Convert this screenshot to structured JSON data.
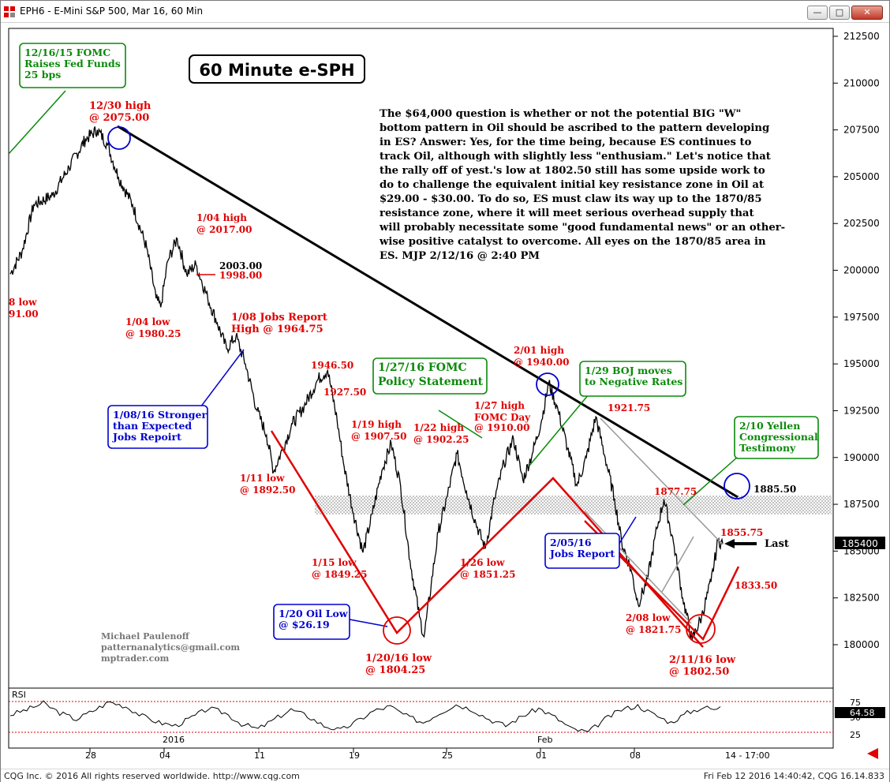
{
  "window": {
    "title": "EPH6 - E-Mini S&P 500, Mar 16, 60 Min",
    "buttons": {
      "minimize": "—",
      "maximize": "□",
      "close": "✕"
    }
  },
  "footer": {
    "left": "CQG Inc. © 2016 All rights reserved worldwide. http://www.cqg.com",
    "right": "Fri Feb 12 2016 14:40:42, CQG 16.14.833"
  },
  "chart_title": "60 Minute e-SPH",
  "commentary": [
    "The $64,000 question is whether or not the potential BIG \"W\"",
    "bottom pattern in Oil should be ascribed to the pattern developing",
    "in ES? Answer: Yes, for the time being, because ES continues to",
    "track Oil, although with slightly less \"enthusiam.\" Let's notice that",
    "the rally off of yest.'s low at 1802.50 still has some upside work to",
    "do to challenge the equivalent initial key resistance zone in Oil at",
    "$29.00 - $30.00. To do so, ES must claw its way up to the 1870/85",
    "resistance zone, where it will meet serious overhead supply that",
    "will probably necessitate some \"good fundamental news\" or an other-",
    "wise positive catalyst to overcome. All eyes on the 1870/85 area in",
    "ES. MJP 2/12/16 @ 2:40 PM"
  ],
  "author": [
    "Michael Paulenoff",
    "patternanalytics@gmail.com",
    "mptrader.com"
  ],
  "last_label": "Last",
  "last_price": "185400",
  "rsi_label": "RSI",
  "rsi_value": "64.58",
  "time_stamp": "14 - 17:00",
  "colors": {
    "red": "#e00000",
    "green": "#0a8a0a",
    "blue": "#0000d0",
    "black": "#000000",
    "price": "#000000"
  },
  "chart_data": {
    "type": "line",
    "title": "60 Minute e-SPH",
    "ylim": [
      1780,
      2130
    ],
    "y_ticks": [
      "212500",
      "210000",
      "207500",
      "205000",
      "202500",
      "200000",
      "197500",
      "195000",
      "192500",
      "190000",
      "187500",
      "185000",
      "182500",
      "180000"
    ],
    "x_ticks": [
      "28",
      "04",
      "11",
      "19",
      "25",
      "01",
      "08"
    ],
    "x_major_labels": [
      "2016",
      "Feb"
    ],
    "series": [
      {
        "values": [
          [
            0,
            1998
          ],
          [
            5,
            2010
          ],
          [
            10,
            2035
          ],
          [
            18,
            2040
          ],
          [
            25,
            2055
          ],
          [
            32,
            2070
          ],
          [
            37,
            2075
          ],
          [
            41,
            2068
          ],
          [
            46,
            2050
          ],
          [
            52,
            2035
          ],
          [
            58,
            2012
          ],
          [
            62,
            1985
          ],
          [
            64,
            1980.25
          ],
          [
            67,
            2005
          ],
          [
            71,
            2017
          ],
          [
            75,
            1998
          ],
          [
            79,
            2003
          ],
          [
            84,
            1985
          ],
          [
            88,
            1972
          ],
          [
            92,
            1958
          ],
          [
            96,
            1964.75
          ],
          [
            100,
            1950
          ],
          [
            105,
            1925
          ],
          [
            109,
            1912
          ],
          [
            112,
            1892.5
          ],
          [
            116,
            1905
          ],
          [
            120,
            1918
          ],
          [
            125,
            1927.5
          ],
          [
            131,
            1942
          ],
          [
            135,
            1946.5
          ],
          [
            139,
            1920
          ],
          [
            142,
            1895
          ],
          [
            146,
            1870
          ],
          [
            150,
            1849.25
          ],
          [
            154,
            1870
          ],
          [
            158,
            1893
          ],
          [
            162,
            1907.5
          ],
          [
            166,
            1885
          ],
          [
            170,
            1845
          ],
          [
            174,
            1815
          ],
          [
            176,
            1804.25
          ],
          [
            179,
            1832
          ],
          [
            182,
            1860
          ],
          [
            186,
            1880
          ],
          [
            190,
            1902.25
          ],
          [
            194,
            1882
          ],
          [
            198,
            1865
          ],
          [
            202,
            1851.25
          ],
          [
            206,
            1878
          ],
          [
            210,
            1897
          ],
          [
            214,
            1910
          ],
          [
            218,
            1888
          ],
          [
            222,
            1902
          ],
          [
            226,
            1920
          ],
          [
            229,
            1940
          ],
          [
            233,
            1925
          ],
          [
            237,
            1905
          ],
          [
            241,
            1885
          ],
          [
            245,
            1900
          ],
          [
            249,
            1921.75
          ],
          [
            253,
            1900
          ],
          [
            257,
            1877.75
          ],
          [
            260,
            1855
          ],
          [
            264,
            1840
          ],
          [
            267,
            1821.75
          ],
          [
            271,
            1835
          ],
          [
            275,
            1862
          ],
          [
            278,
            1877.75
          ],
          [
            282,
            1855
          ],
          [
            286,
            1825
          ],
          [
            290,
            1802.5
          ],
          [
            294,
            1815
          ],
          [
            298,
            1833.5
          ],
          [
            301,
            1855.75
          ],
          [
            303,
            1854
          ]
        ]
      }
    ],
    "annotations": [
      {
        "text": "12/30 high",
        "text2": "@ 2075.00",
        "color": "red"
      },
      {
        "text": "1/04 high",
        "text2": "@ 2017.00",
        "color": "red"
      },
      {
        "text": "2003.00",
        "color": "black"
      },
      {
        "text": "1998.00",
        "color": "red"
      },
      {
        "text": "8 low",
        "text2": "91.00",
        "color": "red"
      },
      {
        "text": "1/04 low",
        "text2": "@ 1980.25",
        "color": "red"
      },
      {
        "text": "1/08 Jobs Report",
        "text2": "High @ 1964.75",
        "color": "red"
      },
      {
        "text": "1946.50",
        "color": "red"
      },
      {
        "text": "1927.50",
        "color": "red"
      },
      {
        "text": "1/11 low",
        "text2": "@ 1892.50",
        "color": "red"
      },
      {
        "text": "1/19 high",
        "text2": "@ 1907.50",
        "color": "red"
      },
      {
        "text": "1/22 high",
        "text2": "@ 1902.25",
        "color": "red"
      },
      {
        "text": "1/27 high",
        "text2": "FOMC Day",
        "text3": "@ 1910.00",
        "color": "red"
      },
      {
        "text": "2/01 high",
        "text2": "@ 1940.00",
        "color": "red"
      },
      {
        "text": "1921.75",
        "color": "red"
      },
      {
        "text": "1877.75",
        "color": "red"
      },
      {
        "text": "1885.50",
        "color": "black"
      },
      {
        "text": "1855.75",
        "color": "red"
      },
      {
        "text": "1833.50",
        "color": "red"
      },
      {
        "text": "1/15 low",
        "text2": "@ 1849.25",
        "color": "red"
      },
      {
        "text": "1/26 low",
        "text2": "@ 1851.25",
        "color": "red"
      },
      {
        "text": "1/20/16 low",
        "text2": "@ 1804.25",
        "color": "red"
      },
      {
        "text": "2/08 low",
        "text2": "@ 1821.75",
        "color": "red"
      },
      {
        "text": "2/11/16 low",
        "text2": "@ 1802.50",
        "color": "red"
      }
    ],
    "callouts": [
      {
        "lines": [
          "12/16/15 FOMC",
          "Raises Fed Funds",
          "25 bps"
        ],
        "color": "green"
      },
      {
        "lines": [
          "1/27/16 FOMC",
          "Policy Statement"
        ],
        "color": "green"
      },
      {
        "lines": [
          "1/29 BOJ moves",
          "to Negative Rates"
        ],
        "color": "green"
      },
      {
        "lines": [
          "2/10 Yellen",
          "Congressional",
          "Testimony"
        ],
        "color": "green"
      },
      {
        "lines": [
          "1/08/16 Stronger",
          "than Expected",
          "Jobs Repoirt"
        ],
        "color": "blue"
      },
      {
        "lines": [
          "1/20 Oil Low",
          "@ $26.19"
        ],
        "color": "blue"
      },
      {
        "lines": [
          "2/05/16",
          "Jobs Report"
        ],
        "color": "blue"
      }
    ],
    "rsi": {
      "levels": [
        "75",
        "50",
        "25"
      ],
      "last": 64.58,
      "values": [
        52,
        60,
        70,
        55,
        45,
        58,
        72,
        65,
        50,
        40,
        35,
        48,
        62,
        55,
        38,
        30,
        45,
        60,
        50,
        35,
        28,
        42,
        58,
        65,
        50,
        40,
        55,
        68,
        60,
        45,
        35,
        50,
        62,
        48,
        30,
        25,
        45,
        60,
        66,
        52,
        40,
        55,
        64,
        58
      ]
    }
  }
}
